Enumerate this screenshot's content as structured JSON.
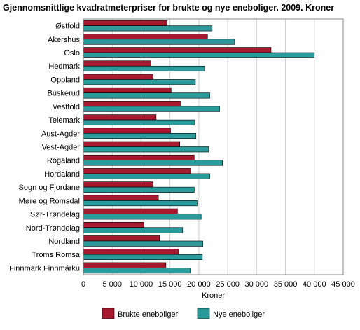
{
  "chart_data": {
    "type": "bar",
    "orientation": "horizontal",
    "title": "Gjennomsnittlige kvadratmeterpriser for brukte og nye eneboliger. 2009. Kroner",
    "xlabel": "Kroner",
    "ylabel": "",
    "xlim": [
      0,
      45000
    ],
    "xticks": [
      0,
      5000,
      10000,
      15000,
      20000,
      25000,
      30000,
      35000,
      40000,
      45000
    ],
    "xtick_labels": [
      "0",
      "5 000",
      "10 000",
      "15 000",
      "20 000",
      "25 000",
      "30 000",
      "35 000",
      "40 000",
      "45 000"
    ],
    "grid": true,
    "legend_position": "bottom",
    "categories": [
      "Østfold",
      "Akershus",
      "Oslo",
      "Hedmark",
      "Oppland",
      "Buskerud",
      "Vestfold",
      "Telemark",
      "Aust-Agder",
      "Vest-Agder",
      "Rogaland",
      "Hordaland",
      "Sogn og Fjordane",
      "Møre og Romsdal",
      "Sør-Trøndelag",
      "Nord-Trøndelag",
      "Nordland",
      "Troms Romsa",
      "Finnmark Finnmárku"
    ],
    "series": [
      {
        "name": "Brukte eneboliger",
        "color": "#a6192e",
        "values": [
          14500,
          21500,
          32500,
          11700,
          12100,
          15200,
          16800,
          12600,
          15100,
          16700,
          19200,
          18500,
          12100,
          13000,
          16300,
          10500,
          13200,
          16500,
          14300
        ]
      },
      {
        "name": "Nye eneboliger",
        "color": "#2a9a9a",
        "values": [
          22300,
          26200,
          40000,
          21000,
          19400,
          21900,
          23600,
          19300,
          19500,
          21700,
          24100,
          21900,
          19200,
          19700,
          20400,
          17200,
          20700,
          20600,
          18500
        ]
      }
    ]
  }
}
